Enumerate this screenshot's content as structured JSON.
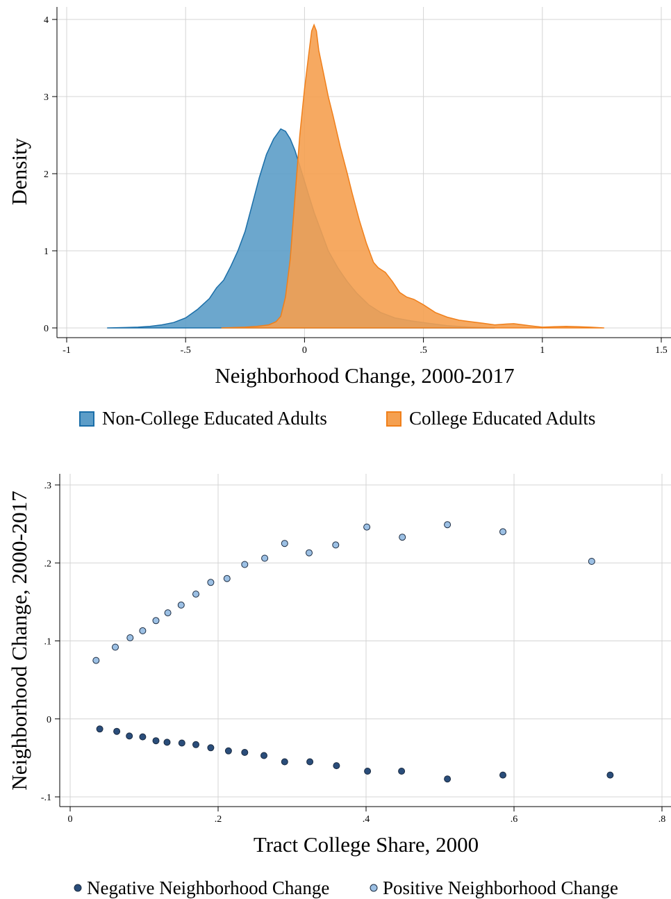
{
  "chart_data": [
    {
      "type": "area",
      "xlabel": "Neighborhood Change, 2000-2017",
      "ylabel": "Density",
      "xlim": [
        -1,
        1.5
      ],
      "ylim": [
        0,
        4
      ],
      "x_ticks": [
        "-1",
        "-.5",
        "0",
        ".5",
        "1",
        "1.5"
      ],
      "y_ticks": [
        "0",
        "1",
        "2",
        "3",
        "4"
      ],
      "grid": true,
      "legend_position": "bottom",
      "series": [
        {
          "name": "Non-College Educated Adults",
          "color": "#1a6ea8",
          "fill": "#5c9dc8",
          "points": [
            [
              -0.83,
              0
            ],
            [
              -0.75,
              0.005
            ],
            [
              -0.7,
              0.01
            ],
            [
              -0.65,
              0.02
            ],
            [
              -0.6,
              0.04
            ],
            [
              -0.55,
              0.07
            ],
            [
              -0.5,
              0.13
            ],
            [
              -0.45,
              0.24
            ],
            [
              -0.4,
              0.38
            ],
            [
              -0.37,
              0.52
            ],
            [
              -0.34,
              0.62
            ],
            [
              -0.31,
              0.8
            ],
            [
              -0.28,
              1.0
            ],
            [
              -0.25,
              1.25
            ],
            [
              -0.22,
              1.6
            ],
            [
              -0.19,
              1.95
            ],
            [
              -0.16,
              2.25
            ],
            [
              -0.13,
              2.45
            ],
            [
              -0.1,
              2.58
            ],
            [
              -0.08,
              2.55
            ],
            [
              -0.06,
              2.45
            ],
            [
              -0.04,
              2.3
            ],
            [
              -0.02,
              2.1
            ],
            [
              0.0,
              1.9
            ],
            [
              0.02,
              1.7
            ],
            [
              0.04,
              1.5
            ],
            [
              0.07,
              1.25
            ],
            [
              0.1,
              1.0
            ],
            [
              0.14,
              0.78
            ],
            [
              0.18,
              0.6
            ],
            [
              0.22,
              0.45
            ],
            [
              0.27,
              0.3
            ],
            [
              0.32,
              0.2
            ],
            [
              0.38,
              0.13
            ],
            [
              0.45,
              0.09
            ],
            [
              0.52,
              0.06
            ],
            [
              0.6,
              0.03
            ],
            [
              0.7,
              0.01
            ],
            [
              0.8,
              0.0
            ]
          ]
        },
        {
          "name": "College Educated Adults",
          "color": "#f07f1a",
          "fill": "#f5a050",
          "points": [
            [
              -0.35,
              0
            ],
            [
              -0.25,
              0.01
            ],
            [
              -0.2,
              0.02
            ],
            [
              -0.15,
              0.04
            ],
            [
              -0.12,
              0.08
            ],
            [
              -0.1,
              0.15
            ],
            [
              -0.08,
              0.4
            ],
            [
              -0.06,
              0.9
            ],
            [
              -0.04,
              1.7
            ],
            [
              -0.02,
              2.5
            ],
            [
              0.0,
              3.1
            ],
            [
              0.02,
              3.6
            ],
            [
              0.03,
              3.85
            ],
            [
              0.04,
              3.93
            ],
            [
              0.05,
              3.85
            ],
            [
              0.06,
              3.6
            ],
            [
              0.08,
              3.3
            ],
            [
              0.1,
              3.0
            ],
            [
              0.12,
              2.75
            ],
            [
              0.15,
              2.35
            ],
            [
              0.18,
              2.0
            ],
            [
              0.2,
              1.75
            ],
            [
              0.23,
              1.4
            ],
            [
              0.26,
              1.1
            ],
            [
              0.29,
              0.85
            ],
            [
              0.31,
              0.78
            ],
            [
              0.34,
              0.72
            ],
            [
              0.37,
              0.6
            ],
            [
              0.4,
              0.46
            ],
            [
              0.43,
              0.4
            ],
            [
              0.46,
              0.37
            ],
            [
              0.5,
              0.3
            ],
            [
              0.55,
              0.2
            ],
            [
              0.6,
              0.14
            ],
            [
              0.65,
              0.1
            ],
            [
              0.7,
              0.08
            ],
            [
              0.75,
              0.06
            ],
            [
              0.8,
              0.04
            ],
            [
              0.85,
              0.05
            ],
            [
              0.88,
              0.055
            ],
            [
              0.92,
              0.04
            ],
            [
              0.97,
              0.02
            ],
            [
              1.0,
              0.01
            ],
            [
              1.05,
              0.015
            ],
            [
              1.1,
              0.02
            ],
            [
              1.15,
              0.015
            ],
            [
              1.2,
              0.01
            ],
            [
              1.26,
              0.0
            ]
          ]
        }
      ]
    },
    {
      "type": "scatter",
      "xlabel": "Tract College Share, 2000",
      "ylabel": "Neighborhood Change, 2000-2017",
      "xlim": [
        0,
        0.8
      ],
      "ylim": [
        -0.1,
        0.3
      ],
      "x_ticks": [
        "0",
        ".2",
        ".4",
        ".6",
        ".8"
      ],
      "y_ticks": [
        "-.1",
        "0",
        ".1",
        ".2",
        ".3"
      ],
      "grid": true,
      "legend_position": "bottom",
      "series": [
        {
          "name": "Negative Neighborhood Change",
          "color": "#2a4d7a",
          "points": [
            [
              0.04,
              -0.013
            ],
            [
              0.063,
              -0.016
            ],
            [
              0.08,
              -0.022
            ],
            [
              0.098,
              -0.023
            ],
            [
              0.116,
              -0.028
            ],
            [
              0.131,
              -0.03
            ],
            [
              0.151,
              -0.031
            ],
            [
              0.17,
              -0.033
            ],
            [
              0.19,
              -0.037
            ],
            [
              0.214,
              -0.041
            ],
            [
              0.236,
              -0.043
            ],
            [
              0.262,
              -0.047
            ],
            [
              0.29,
              -0.055
            ],
            [
              0.324,
              -0.055
            ],
            [
              0.36,
              -0.06
            ],
            [
              0.402,
              -0.067
            ],
            [
              0.448,
              -0.067
            ],
            [
              0.51,
              -0.077
            ],
            [
              0.585,
              -0.072
            ],
            [
              0.73,
              -0.072
            ]
          ]
        },
        {
          "name": "Positive Neighborhood Change",
          "color": "#9cc0e4",
          "points": [
            [
              0.035,
              0.075
            ],
            [
              0.061,
              0.092
            ],
            [
              0.081,
              0.104
            ],
            [
              0.098,
              0.113
            ],
            [
              0.116,
              0.126
            ],
            [
              0.132,
              0.136
            ],
            [
              0.15,
              0.146
            ],
            [
              0.17,
              0.16
            ],
            [
              0.19,
              0.175
            ],
            [
              0.212,
              0.18
            ],
            [
              0.236,
              0.198
            ],
            [
              0.263,
              0.206
            ],
            [
              0.29,
              0.225
            ],
            [
              0.323,
              0.213
            ],
            [
              0.359,
              0.223
            ],
            [
              0.401,
              0.246
            ],
            [
              0.449,
              0.233
            ],
            [
              0.51,
              0.249
            ],
            [
              0.585,
              0.24
            ],
            [
              0.705,
              0.202
            ]
          ]
        }
      ]
    }
  ]
}
